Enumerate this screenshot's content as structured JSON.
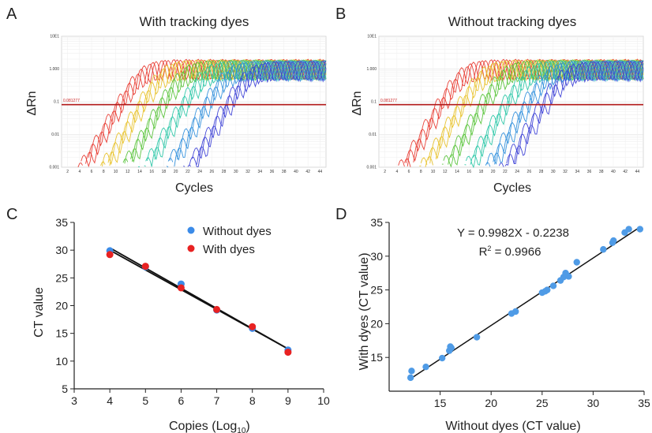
{
  "panels": {
    "A": {
      "letter": "A",
      "title": "With tracking dyes",
      "ylabel": "ΔRn",
      "xlabel": "Cycles",
      "threshold_label": "0.081277",
      "ytick_labels": [
        "10E1",
        "1.000",
        "0.1",
        "0.01",
        "0.001"
      ],
      "xtick_labels": [
        "2",
        "4",
        "6",
        "8",
        "10",
        "12",
        "14",
        "16",
        "18",
        "20",
        "22",
        "24",
        "26",
        "28",
        "30",
        "32",
        "34",
        "36",
        "38",
        "40",
        "42",
        "44"
      ]
    },
    "B": {
      "letter": "B",
      "title": "Without tracking dyes",
      "ylabel": "ΔRn",
      "xlabel": "Cycles",
      "threshold_label": "0.081277",
      "ytick_labels": [
        "10E1",
        "1.000",
        "0.1",
        "0.01",
        "0.001"
      ],
      "xtick_labels": [
        "2",
        "4",
        "6",
        "8",
        "10",
        "12",
        "14",
        "16",
        "18",
        "20",
        "22",
        "24",
        "26",
        "28",
        "30",
        "32",
        "34",
        "36",
        "38",
        "40",
        "42",
        "44"
      ]
    },
    "C": {
      "letter": "C"
    },
    "D": {
      "letter": "D"
    }
  },
  "chart_data": [
    {
      "id": "A",
      "type": "line",
      "title": "With tracking dyes",
      "xlabel": "Cycles",
      "ylabel": "ΔRn",
      "xlim": [
        1,
        45
      ],
      "ylim": [
        0.001,
        10
      ],
      "yscale": "log",
      "threshold": 0.081277,
      "threshold_color": "#b11a1a",
      "grid": true,
      "series": [
        {
          "color": "#e83a30",
          "ct": [
            10.3,
            10.6,
            10.9
          ]
        },
        {
          "color": "#e8c22a",
          "ct": [
            13.8,
            14.2,
            14.6
          ]
        },
        {
          "color": "#58c43a",
          "ct": [
            17.3,
            17.6,
            18.0
          ]
        },
        {
          "color": "#2cc7a8",
          "ct": [
            20.8,
            21.2,
            21.6
          ]
        },
        {
          "color": "#2f8fdc",
          "ct": [
            24.6,
            25.0,
            25.4
          ]
        },
        {
          "color": "#3b3fd6",
          "ct": [
            28.2,
            28.6,
            29.0
          ]
        }
      ]
    },
    {
      "id": "B",
      "type": "line",
      "title": "Without tracking dyes",
      "xlabel": "Cycles",
      "ylabel": "ΔRn",
      "xlim": [
        1,
        45
      ],
      "ylim": [
        0.001,
        10
      ],
      "yscale": "log",
      "threshold": 0.081277,
      "threshold_color": "#b11a1a",
      "grid": true,
      "series": [
        {
          "color": "#e83a30",
          "ct": [
            10.8,
            11.2,
            11.6
          ]
        },
        {
          "color": "#e8c22a",
          "ct": [
            14.3,
            14.7,
            15.1
          ]
        },
        {
          "color": "#58c43a",
          "ct": [
            17.8,
            18.2,
            18.6
          ]
        },
        {
          "color": "#2cc7a8",
          "ct": [
            21.6,
            22.0,
            22.4
          ]
        },
        {
          "color": "#2f8fdc",
          "ct": [
            25.0,
            25.5,
            25.9
          ]
        },
        {
          "color": "#3b3fd6",
          "ct": [
            27.8,
            28.3,
            28.9
          ]
        }
      ]
    },
    {
      "id": "C",
      "type": "scatter",
      "xlabel": "Copies (Log",
      "xlabel_sub": "10",
      "xlabel_close": ")",
      "ylabel": "CT value",
      "xlim": [
        3,
        10
      ],
      "ylim": [
        5,
        35
      ],
      "xticks": [
        3,
        4,
        5,
        6,
        7,
        8,
        9,
        10
      ],
      "yticks": [
        5,
        10,
        15,
        20,
        25,
        30,
        35
      ],
      "legend_position": "top-right",
      "series": [
        {
          "name": "Without dyes",
          "color": "#3b8be8",
          "x": [
            4,
            5,
            6,
            7,
            8,
            9
          ],
          "y": [
            29.9,
            27.0,
            23.9,
            19.2,
            15.9,
            12.0
          ]
        },
        {
          "name": "With dyes",
          "color": "#e82222",
          "x": [
            4,
            5,
            6,
            7,
            8,
            9
          ],
          "y": [
            29.2,
            27.1,
            23.2,
            19.3,
            16.2,
            11.6
          ]
        }
      ]
    },
    {
      "id": "D",
      "type": "scatter",
      "xlabel": "Without dyes (CT value)",
      "ylabel": "With dyes  (CT value)",
      "xlim": [
        10,
        35
      ],
      "ylim": [
        10,
        35
      ],
      "xticks": [
        15,
        20,
        25,
        30,
        35
      ],
      "yticks": [
        15,
        20,
        25,
        30,
        35
      ],
      "equation": "Y = 0.9982X - 0.2238",
      "r2_label": "R",
      "r2_sup": "2",
      "r2_value": " = 0.9966",
      "fit": {
        "slope": 0.9982,
        "intercept": -0.2238,
        "x_range": [
          12,
          34.6
        ]
      },
      "series": [
        {
          "color": "#4f9be6",
          "x": [
            12.1,
            12.2,
            13.6,
            15.2,
            15.9,
            16.1,
            16.0,
            18.6,
            22.0,
            22.4,
            25.0,
            25.3,
            25.5,
            26.1,
            26.8,
            27.1,
            27.3,
            27.4,
            27.6,
            28.4,
            31.0,
            31.9,
            32.0,
            33.1,
            33.5,
            34.6
          ],
          "y": [
            12.0,
            13.0,
            13.6,
            14.9,
            16.0,
            16.4,
            16.6,
            18.0,
            21.5,
            21.8,
            24.6,
            24.8,
            25.0,
            25.6,
            26.4,
            26.9,
            27.5,
            27.2,
            27.0,
            29.1,
            31.0,
            32.0,
            32.3,
            33.5,
            34.0,
            34.0
          ]
        }
      ]
    }
  ]
}
